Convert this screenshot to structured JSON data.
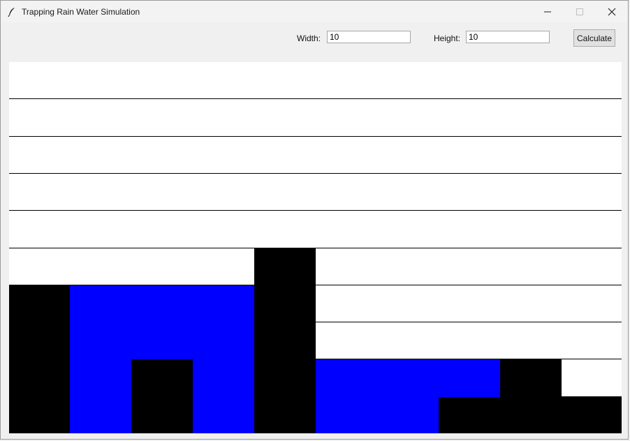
{
  "window": {
    "title": "Trapping Rain Water Simulation",
    "icon": "feather-icon",
    "controls": {
      "minimize": "—",
      "maximize": "☐",
      "close": "✕"
    }
  },
  "toolbar": {
    "width_label": "Width:",
    "width_value": "10",
    "height_label": "Height:",
    "height_value": "10",
    "calculate_label": "Calculate"
  },
  "grid": {
    "columns": 10,
    "rows": 10,
    "bar_heights": [
      4,
      0,
      2,
      0,
      5,
      0,
      0,
      1,
      2,
      1
    ],
    "water_levels": [
      0,
      4,
      2,
      4,
      0,
      2,
      2,
      1,
      0,
      0
    ],
    "colors": {
      "empty": "#ffffff",
      "bar": "#000000",
      "water": "#0000ff",
      "line": "#000000"
    }
  }
}
